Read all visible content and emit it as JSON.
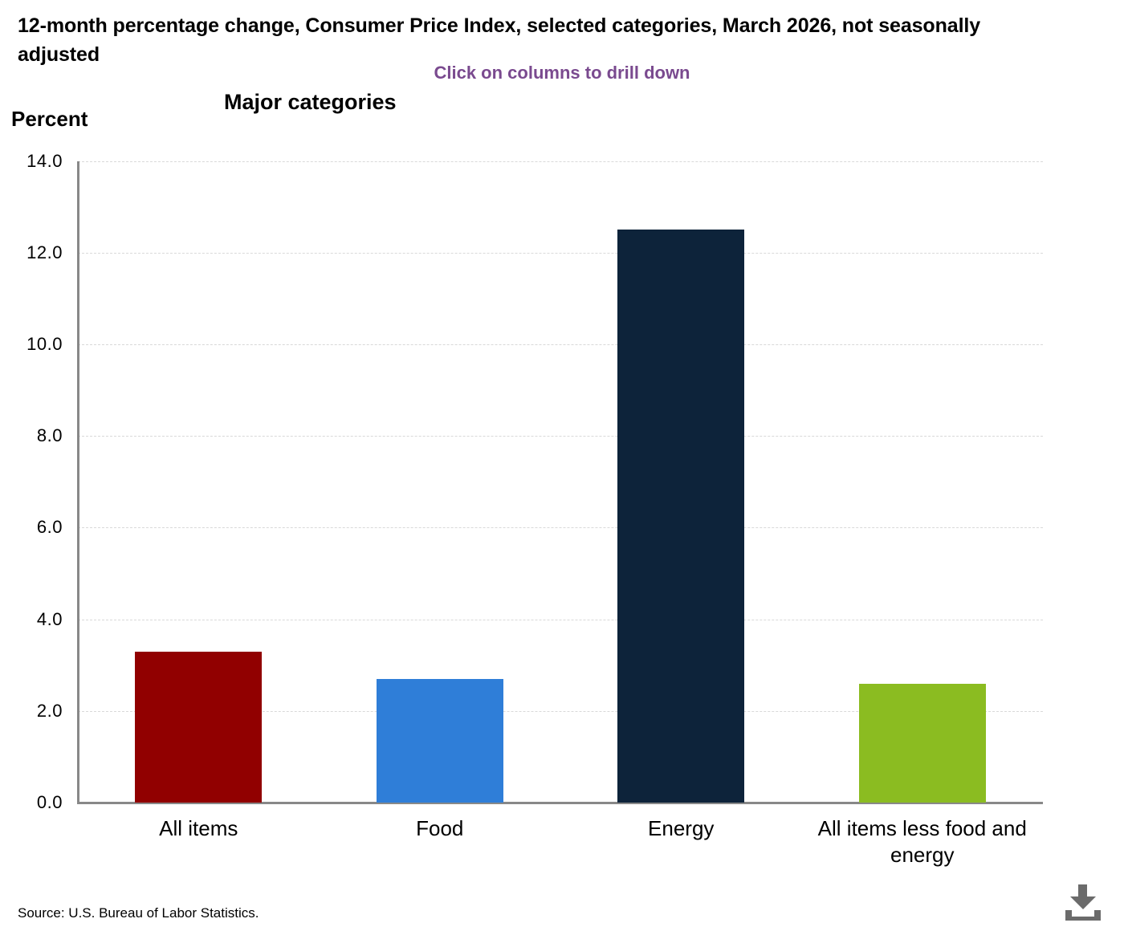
{
  "header": {
    "title": "12-month percentage change, Consumer Price Index, selected categories, March 2026, not seasonally adjusted",
    "hint": "Click on columns to drill down",
    "level_title": "Major categories",
    "axis_unit_label": "Percent"
  },
  "chart_data": {
    "type": "bar",
    "title": "Major categories",
    "ylabel": "Percent",
    "xlabel": "",
    "categories": [
      "All items",
      "Food",
      "Energy",
      "All items less food and energy"
    ],
    "values": [
      3.3,
      2.7,
      12.5,
      2.6
    ],
    "bar_colors": [
      "#910000",
      "#2f7ed8",
      "#0d233a",
      "#8bbc21"
    ],
    "ylim": [
      0,
      14
    ],
    "y_tick_interval": 2,
    "y_tick_labels": [
      "0.0",
      "2.0",
      "4.0",
      "6.0",
      "8.0",
      "10.0",
      "12.0",
      "14.0"
    ],
    "grid": "horizontal-dashed",
    "legend": "none"
  },
  "footer": {
    "source": "Source: U.S. Bureau of Labor Statistics."
  },
  "colors": {
    "hint_text": "#7a4a8f",
    "axis_line": "#888888",
    "gridline": "#d9d9d9",
    "download_icon": "#6b6b6b",
    "text": "#000000"
  },
  "icons": {
    "download": "download-icon"
  }
}
